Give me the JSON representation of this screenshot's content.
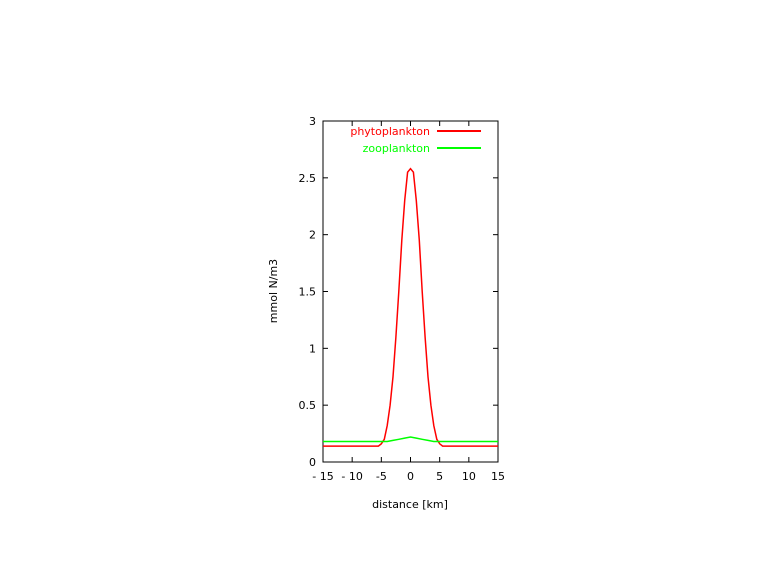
{
  "chart_data": {
    "type": "line",
    "title": "",
    "xlabel": "distance [km]",
    "ylabel": "mmol N/m3",
    "xlim": [
      -15,
      15
    ],
    "ylim": [
      0,
      3
    ],
    "x_ticks": [
      "- 15",
      "- 10",
      "-5",
      "0",
      "5",
      "10",
      "15"
    ],
    "y_ticks": [
      "0",
      "0.5",
      "1",
      "1.5",
      "2",
      "2.5",
      "3"
    ],
    "legend_position": "top-right",
    "grid": false,
    "series": [
      {
        "name": "phytoplankton",
        "color": "#ff0000",
        "x": [
          -15,
          -5.5,
          -5,
          -4.5,
          -4,
          -3.5,
          -3,
          -2.5,
          -2,
          -1.5,
          -1,
          -0.5,
          0,
          0.5,
          1,
          1.5,
          2,
          2.5,
          3,
          3.5,
          4,
          4.5,
          5,
          5.5,
          15
        ],
        "y": [
          0.14,
          0.14,
          0.16,
          0.2,
          0.32,
          0.5,
          0.75,
          1.1,
          1.5,
          1.95,
          2.3,
          2.55,
          2.58,
          2.55,
          2.3,
          1.95,
          1.5,
          1.1,
          0.75,
          0.5,
          0.32,
          0.2,
          0.16,
          0.14,
          0.14
        ]
      },
      {
        "name": "zooplankton",
        "color": "#00ff00",
        "x": [
          -15,
          -5,
          -4,
          -3,
          -2,
          -1,
          0,
          1,
          2,
          3,
          4,
          5,
          15
        ],
        "y": [
          0.18,
          0.18,
          0.18,
          0.19,
          0.2,
          0.21,
          0.22,
          0.21,
          0.2,
          0.19,
          0.18,
          0.18,
          0.18
        ]
      }
    ]
  }
}
